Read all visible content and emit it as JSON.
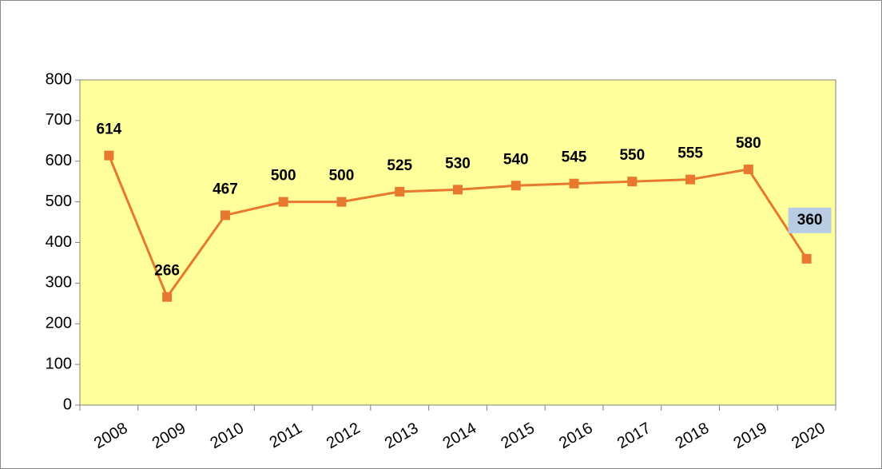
{
  "chart_data": {
    "type": "line",
    "categories": [
      "2008",
      "2009",
      "2010",
      "2011",
      "2012",
      "2013",
      "2014",
      "2015",
      "2016",
      "2017",
      "2018",
      "2019",
      "2020"
    ],
    "series": [
      {
        "color": "#e8782e",
        "values": [
          614,
          266,
          467,
          500,
          500,
          525,
          530,
          540,
          545,
          550,
          555,
          580,
          360
        ],
        "label_backgrounds": [
          null,
          null,
          null,
          null,
          null,
          null,
          null,
          null,
          null,
          null,
          null,
          null,
          "#b8cce4"
        ]
      }
    ],
    "ylim": [
      0,
      800
    ],
    "yticks": [
      0,
      100,
      200,
      300,
      400,
      500,
      600,
      700,
      800
    ],
    "plot_background": "#ffff9c",
    "grid": false
  }
}
